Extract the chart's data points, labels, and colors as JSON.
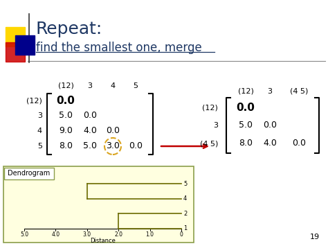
{
  "title1": "Repeat:",
  "title2": "find the smallest one, merge",
  "title1_color": "#1F3864",
  "title2_color": "#1F3864",
  "bg_color": "#FFFFFF",
  "slide_number": "19",
  "matrix1_col_labels": [
    "(12)",
    "3",
    "4",
    "5"
  ],
  "matrix1_row_labels": [
    "(12)",
    "3",
    "4",
    "5"
  ],
  "matrix1_data": [
    [
      "0.0",
      "",
      "",
      ""
    ],
    [
      "5.0",
      "0.0",
      "",
      ""
    ],
    [
      "9.0",
      "4.0",
      "0.0",
      ""
    ],
    [
      "8.0",
      "5.0",
      "3.0",
      "0.0"
    ]
  ],
  "matrix2_col_labels": [
    "(12)",
    "3",
    "(4 5)"
  ],
  "matrix2_row_labels": [
    "(12)",
    "3",
    "(4 5)"
  ],
  "matrix2_data": [
    [
      "0.0",
      "",
      ""
    ],
    [
      "5.0",
      "0.0",
      ""
    ],
    [
      "8.0",
      "4.0",
      "0.0"
    ]
  ],
  "arrow_color": "#C00000",
  "highlight_circle_color": "#DAA520",
  "dendrogram_bg": "#FFFFE0",
  "dendrogram_border": "#8B9E4B",
  "dendrogram_line_color": "#6B6B00",
  "dend_x_ticks": [
    5.0,
    4.0,
    3.0,
    2.0,
    1.0,
    0
  ],
  "dend_xlabel": "Distance",
  "decorative_square_yellow": "#FFD700",
  "decorative_square_red": "#CC0000",
  "decorative_square_blue": "#00008B"
}
